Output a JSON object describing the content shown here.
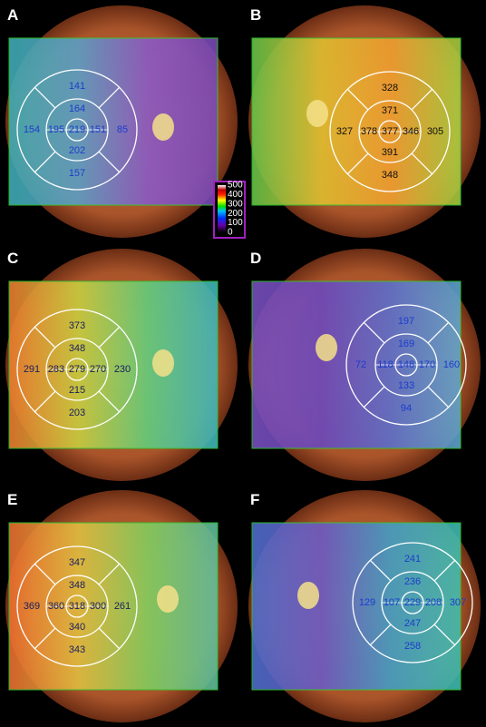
{
  "panels": [
    {
      "label": "A",
      "center": 219,
      "inner": [
        164,
        195,
        151,
        202
      ],
      "outer": [
        141,
        154,
        85,
        157
      ]
    },
    {
      "label": "B",
      "center": 377,
      "inner": [
        371,
        378,
        346,
        391
      ],
      "outer": [
        328,
        327,
        305,
        348
      ]
    },
    {
      "label": "C",
      "center": 279,
      "inner": [
        348,
        283,
        270,
        215
      ],
      "outer": [
        373,
        291,
        230,
        203
      ]
    },
    {
      "label": "D",
      "center": 148,
      "inner": [
        169,
        118,
        170,
        133
      ],
      "outer": [
        197,
        72,
        160,
        94
      ]
    },
    {
      "label": "E",
      "center": 318,
      "inner": [
        348,
        360,
        300,
        340
      ],
      "outer": [
        347,
        369,
        261,
        343
      ]
    },
    {
      "label": "F",
      "center": 229,
      "inner": [
        236,
        107,
        208,
        247
      ],
      "outer": [
        241,
        129,
        307,
        258
      ]
    }
  ],
  "colorbar": {
    "ticks": [
      500,
      400,
      300,
      200,
      100,
      0
    ]
  }
}
